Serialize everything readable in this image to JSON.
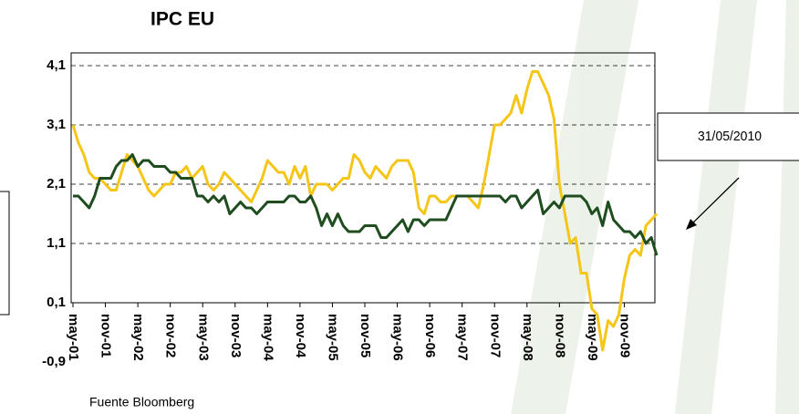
{
  "chart_data": {
    "type": "line",
    "title": "IPC EU",
    "source": "Fuente Bloomberg",
    "annotation": "31/05/2010",
    "categories": [
      "may-01",
      null,
      null,
      null,
      null,
      null,
      "nov-01",
      null,
      null,
      null,
      null,
      null,
      "may-02",
      null,
      null,
      null,
      null,
      null,
      "nov-02",
      null,
      null,
      null,
      null,
      null,
      "may-03",
      null,
      null,
      null,
      null,
      null,
      "nov-03",
      null,
      null,
      null,
      null,
      null,
      "may-04",
      null,
      null,
      null,
      null,
      null,
      "nov-04",
      null,
      null,
      null,
      null,
      null,
      "may-05",
      null,
      null,
      null,
      null,
      null,
      "nov-05",
      null,
      null,
      null,
      null,
      null,
      "may-06",
      null,
      null,
      null,
      null,
      null,
      "nov-06",
      null,
      null,
      null,
      null,
      null,
      "may-07",
      null,
      null,
      null,
      null,
      null,
      "nov-07",
      null,
      null,
      null,
      null,
      null,
      "may-08",
      null,
      null,
      null,
      null,
      null,
      "nov-08",
      null,
      null,
      null,
      null,
      null,
      "may-09",
      null,
      null,
      null,
      null,
      null,
      "nov-09",
      null,
      null,
      null,
      null,
      null,
      null
    ],
    "series": [
      {
        "color": "#f5c518",
        "values": [
          3.1,
          2.8,
          2.6,
          2.3,
          2.2,
          2.2,
          2.1,
          2.0,
          2.0,
          2.3,
          2.6,
          2.5,
          2.4,
          2.2,
          2.0,
          1.9,
          2.0,
          2.1,
          2.1,
          2.3,
          2.3,
          2.4,
          2.2,
          2.3,
          2.4,
          2.1,
          2.0,
          2.1,
          2.3,
          2.2,
          2.1,
          2.0,
          1.9,
          1.8,
          2.0,
          2.2,
          2.5,
          2.4,
          2.3,
          2.3,
          2.1,
          2.4,
          2.2,
          2.4,
          1.9,
          2.1,
          2.1,
          2.1,
          2.0,
          2.1,
          2.2,
          2.2,
          2.6,
          2.5,
          2.3,
          2.2,
          2.4,
          2.3,
          2.2,
          2.4,
          2.5,
          2.5,
          2.5,
          2.3,
          1.7,
          1.6,
          1.9,
          1.9,
          1.8,
          1.8,
          1.9,
          1.9,
          1.9,
          1.9,
          1.8,
          1.7,
          2.1,
          2.6,
          3.1,
          3.1,
          3.2,
          3.3,
          3.6,
          3.3,
          3.7,
          4.0,
          4.0,
          3.8,
          3.6,
          3.2,
          2.1,
          1.6,
          1.1,
          1.2,
          0.6,
          0.6,
          0.0,
          -0.1,
          -0.7,
          -0.2,
          -0.3,
          -0.1,
          0.5,
          0.9,
          1.0,
          0.9,
          1.4,
          1.5,
          1.6
        ]
      },
      {
        "color": "#1f4d1f",
        "values": [
          1.9,
          1.9,
          1.8,
          1.7,
          1.9,
          2.2,
          2.2,
          2.2,
          2.4,
          2.5,
          2.5,
          2.6,
          2.4,
          2.5,
          2.5,
          2.4,
          2.4,
          2.4,
          2.3,
          2.3,
          2.2,
          2.2,
          2.2,
          1.9,
          1.9,
          1.8,
          1.9,
          1.8,
          1.9,
          1.6,
          1.7,
          1.8,
          1.7,
          1.7,
          1.6,
          1.7,
          1.8,
          1.8,
          1.8,
          1.8,
          1.9,
          1.9,
          1.8,
          1.8,
          1.9,
          1.7,
          1.4,
          1.6,
          1.4,
          1.6,
          1.4,
          1.3,
          1.3,
          1.3,
          1.4,
          1.4,
          1.4,
          1.2,
          1.2,
          1.3,
          1.4,
          1.5,
          1.3,
          1.5,
          1.5,
          1.4,
          1.5,
          1.5,
          1.5,
          1.5,
          1.7,
          1.9,
          1.9,
          1.9,
          1.9,
          1.9,
          1.9,
          1.9,
          1.9,
          1.9,
          1.8,
          1.9,
          1.9,
          1.7,
          1.8,
          1.9,
          2.0,
          1.6,
          1.7,
          1.8,
          1.7,
          1.9,
          1.9,
          1.9,
          1.9,
          1.8,
          1.6,
          1.7,
          1.4,
          1.8,
          1.5,
          1.4,
          1.3,
          1.3,
          1.2,
          1.3,
          1.1,
          1.2,
          0.9
        ]
      }
    ],
    "ylim": [
      -0.9,
      4.1
    ],
    "yticks": [
      {
        "value": -0.9,
        "label": "-0,9"
      },
      {
        "value": 0.1,
        "label": "0,1"
      },
      {
        "value": 1.1,
        "label": "1,1"
      },
      {
        "value": 2.1,
        "label": "2,1"
      },
      {
        "value": 3.1,
        "label": "3,1"
      },
      {
        "value": 4.1,
        "label": "4,1"
      }
    ],
    "grid": true
  }
}
